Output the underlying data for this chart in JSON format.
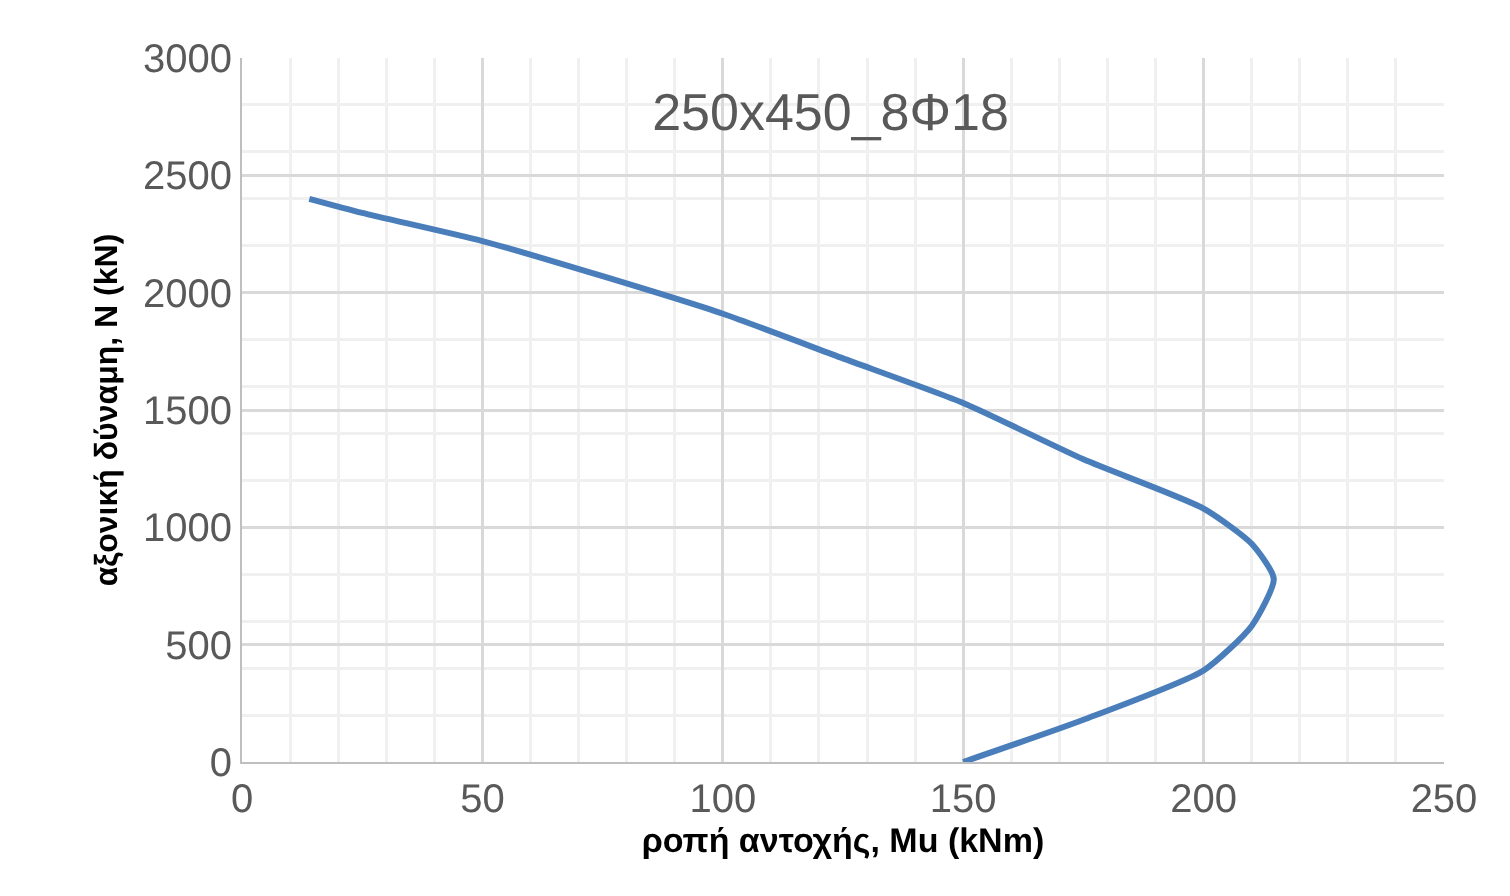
{
  "chart_data": {
    "type": "line",
    "title": "250x450_8Φ18",
    "xlabel": "ροπή αντοχής, Mu (kNm)",
    "ylabel": "αξονική δύναμη, N (kN)",
    "x": [
      14,
      25,
      50,
      75,
      100,
      125,
      150,
      175,
      200,
      210,
      214.6,
      210,
      200,
      175,
      150
    ],
    "series": [
      {
        "color": "#4a7ebb",
        "values": [
          2400,
          2340,
          2220,
          2070,
          1910,
          1720,
          1530,
          1290,
          1080,
          930,
          780,
          580,
          390,
          180,
          0
        ]
      }
    ],
    "xlim": [
      0,
      250
    ],
    "xticks": [
      0,
      50,
      100,
      150,
      200,
      250
    ],
    "ylim": [
      0,
      3000
    ],
    "yticks": [
      0,
      500,
      1000,
      1500,
      2000,
      2500,
      3000
    ],
    "grid": true,
    "marker": "none",
    "line_style": "solid"
  }
}
